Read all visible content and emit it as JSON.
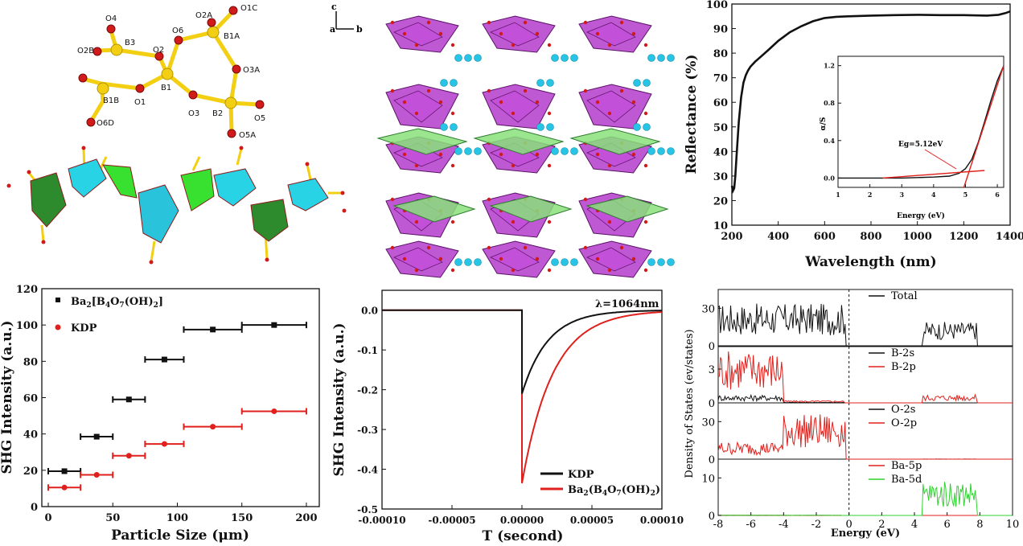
{
  "panels": {
    "molecule": {
      "atoms": [
        {
          "label": "O4",
          "kind": "O"
        },
        {
          "label": "B3",
          "kind": "B"
        },
        {
          "label": "O2B",
          "kind": "O"
        },
        {
          "label": "O2",
          "kind": "O"
        },
        {
          "label": "O6",
          "kind": "O"
        },
        {
          "label": "B1",
          "kind": "B"
        },
        {
          "label": "O2A",
          "kind": "O"
        },
        {
          "label": "O1C",
          "kind": "O"
        },
        {
          "label": "B1A",
          "kind": "B"
        },
        {
          "label": "O3A",
          "kind": "O"
        },
        {
          "label": "B1B",
          "kind": "B"
        },
        {
          "label": "O1",
          "kind": "O"
        },
        {
          "label": "O3",
          "kind": "O"
        },
        {
          "label": "B2",
          "kind": "B"
        },
        {
          "label": "O5",
          "kind": "O"
        },
        {
          "label": "O6D",
          "kind": "O"
        },
        {
          "label": "O5A",
          "kind": "O"
        }
      ],
      "colors": {
        "O": "#d11b1b",
        "B": "#f2cf12"
      }
    },
    "crystal": {
      "axis_labels": {
        "c": "c",
        "a": "a",
        "b": "b"
      },
      "colors": {
        "polyhedra": "#b133c9",
        "chain": "#88e07a",
        "ba": "#28c4e6"
      }
    },
    "reflectance": {
      "chart_data": {
        "type": "line",
        "title": "",
        "xlabel": "Wavelength (nm)",
        "ylabel": "Reflectance (%)",
        "xlim": [
          200,
          1400
        ],
        "ylim": [
          10,
          100
        ],
        "xticks": [
          200,
          400,
          600,
          800,
          1000,
          1200,
          1400
        ],
        "yticks": [
          10,
          20,
          30,
          40,
          50,
          60,
          70,
          80,
          90,
          100
        ],
        "series": [
          {
            "name": "Reflectance",
            "color": "#111111",
            "x": [
              200,
              205,
              210,
              215,
              220,
              230,
              240,
              250,
              260,
              270,
              280,
              300,
              330,
              360,
              400,
              450,
              500,
              550,
              600,
              650,
              700,
              800,
              900,
              1000,
              1100,
              1200,
              1300,
              1350,
              1380,
              1400
            ],
            "y": [
              26,
              24,
              25,
              30,
              38,
              52,
              62,
              68,
              71,
              73,
              74.5,
              76.5,
              79,
              81.5,
              85,
              88.5,
              91,
              93,
              94.3,
              94.8,
              95,
              95.3,
              95.5,
              95.6,
              95.5,
              95.5,
              95.3,
              95.6,
              96.3,
              97
            ]
          }
        ]
      },
      "inset": {
        "chart_data": {
          "type": "line",
          "xlabel": "Energy (eV)",
          "ylabel": "α/S",
          "xlim": [
            1,
            6.2
          ],
          "ylim": [
            -0.1,
            1.3
          ],
          "xticks": [
            1,
            2,
            3,
            4,
            5,
            6
          ],
          "yticks": [
            0.0,
            0.4,
            0.8,
            1.2
          ],
          "annotation": "Eg=5.12eV",
          "series": [
            {
              "name": "α/S",
              "color": "#111111",
              "x": [
                1,
                2,
                3,
                4,
                4.5,
                4.8,
                5.0,
                5.2,
                5.4,
                5.6,
                5.8,
                6.0,
                6.2
              ],
              "y": [
                0,
                0,
                0,
                0.01,
                0.02,
                0.05,
                0.1,
                0.2,
                0.38,
                0.6,
                0.83,
                1.04,
                1.2
              ]
            },
            {
              "name": "baseline fit",
              "color": "#e0201c",
              "x": [
                2.4,
                5.6
              ],
              "y": [
                0.0,
                0.08
              ]
            },
            {
              "name": "edge fit",
              "color": "#e0201c",
              "x": [
                4.95,
                6.2
              ],
              "y": [
                -0.1,
                1.2
              ]
            }
          ]
        }
      }
    },
    "shg_size": {
      "chart_data": {
        "type": "scatter",
        "xlabel": "Particle Size (μm)",
        "ylabel": "SHG Intensity (a.u.)",
        "xlim": [
          -5,
          210
        ],
        "ylim": [
          0,
          120
        ],
        "xticks": [
          0,
          50,
          100,
          150,
          200
        ],
        "yticks": [
          0,
          20,
          40,
          60,
          80,
          100,
          120
        ],
        "series": [
          {
            "name": "Ba2[B4O7(OH)2]",
            "legend": {
              "pre": "Ba",
              "s1": "2",
              "mid": "[B",
              "s2": "4",
              "mid2": "O",
              "s3": "7",
              "post": "(OH)",
              "s4": "2",
              "end": "]"
            },
            "color": "#111111",
            "marker": "square",
            "x": [
              12.5,
              37.5,
              62.5,
              90,
              127.5,
              175
            ],
            "xerr": [
              [
                0,
                25
              ],
              [
                25,
                50
              ],
              [
                50,
                75
              ],
              [
                75,
                105
              ],
              [
                105,
                150
              ],
              [
                150,
                200
              ]
            ],
            "y": [
              19.5,
              38.5,
              59,
              81,
              97.5,
              100
            ]
          },
          {
            "name": "KDP",
            "color": "#e0201c",
            "marker": "circle",
            "x": [
              12.5,
              37.5,
              62.5,
              90,
              127.5,
              175
            ],
            "xerr": [
              [
                0,
                25
              ],
              [
                25,
                50
              ],
              [
                50,
                75
              ],
              [
                75,
                105
              ],
              [
                105,
                150
              ],
              [
                150,
                200
              ]
            ],
            "y": [
              10.5,
              17.5,
              28,
              34.5,
              44,
              52.5
            ]
          }
        ]
      }
    },
    "shg_time": {
      "chart_data": {
        "type": "line",
        "xlabel": "T (second)",
        "ylabel": "SHG Intensity (a.u.)",
        "xlim": [
          -0.0001,
          0.0001
        ],
        "ylim": [
          -0.5,
          0.05
        ],
        "xticks": [
          "-0.00010",
          "-0.00005",
          "0.00000",
          "0.00005",
          "0.00010"
        ],
        "yticks": [
          "0.0",
          "-0.1",
          "-0.2",
          "-0.3",
          "-0.4",
          "-0.5"
        ],
        "annotation": "λ=1064nm",
        "series": [
          {
            "name": "KDP",
            "color": "#111111",
            "peak": -0.21,
            "tau": 1.85e-05
          },
          {
            "name": "Ba2(B4O7(OH)2)",
            "legend": {
              "pre": "Ba",
              "s1": "2",
              "mid": "(B",
              "s2": "4",
              "mid2": "O",
              "s3": "7",
              "post": "(OH)",
              "s4": "2",
              "end": ")"
            },
            "color": "#e0201c",
            "peak": -0.435,
            "tau": 2.2e-05
          }
        ]
      }
    },
    "dos": {
      "chart_data": {
        "type": "line",
        "xlabel": "Energy (eV)",
        "ylabel": "Density of States (ev/states)",
        "xlim": [
          -8,
          10
        ],
        "xticks": [
          -8,
          -6,
          -4,
          -2,
          0,
          2,
          4,
          6,
          8,
          10
        ],
        "fermi_level": 0,
        "subplots": [
          {
            "ylim": [
              0,
              45
            ],
            "yticks": [
              0,
              30
            ],
            "legend": [
              {
                "name": "Total",
                "color": "#111111"
              }
            ]
          },
          {
            "ylim": [
              0,
              5
            ],
            "yticks": [
              0,
              3
            ],
            "legend": [
              {
                "name": "B-2s",
                "color": "#111111"
              },
              {
                "name": "B-2p",
                "color": "#e0201c"
              }
            ]
          },
          {
            "ylim": [
              0,
              45
            ],
            "yticks": [
              0,
              30
            ],
            "legend": [
              {
                "name": "O-2s",
                "color": "#111111"
              },
              {
                "name": "O-2p",
                "color": "#e0201c"
              }
            ]
          },
          {
            "ylim": [
              0,
              15
            ],
            "yticks": [
              0,
              10
            ],
            "legend": [
              {
                "name": "Ba-5p",
                "color": "#e0201c"
              },
              {
                "name": "Ba-5d",
                "color": "#2fd12f"
              }
            ]
          }
        ]
      }
    }
  }
}
